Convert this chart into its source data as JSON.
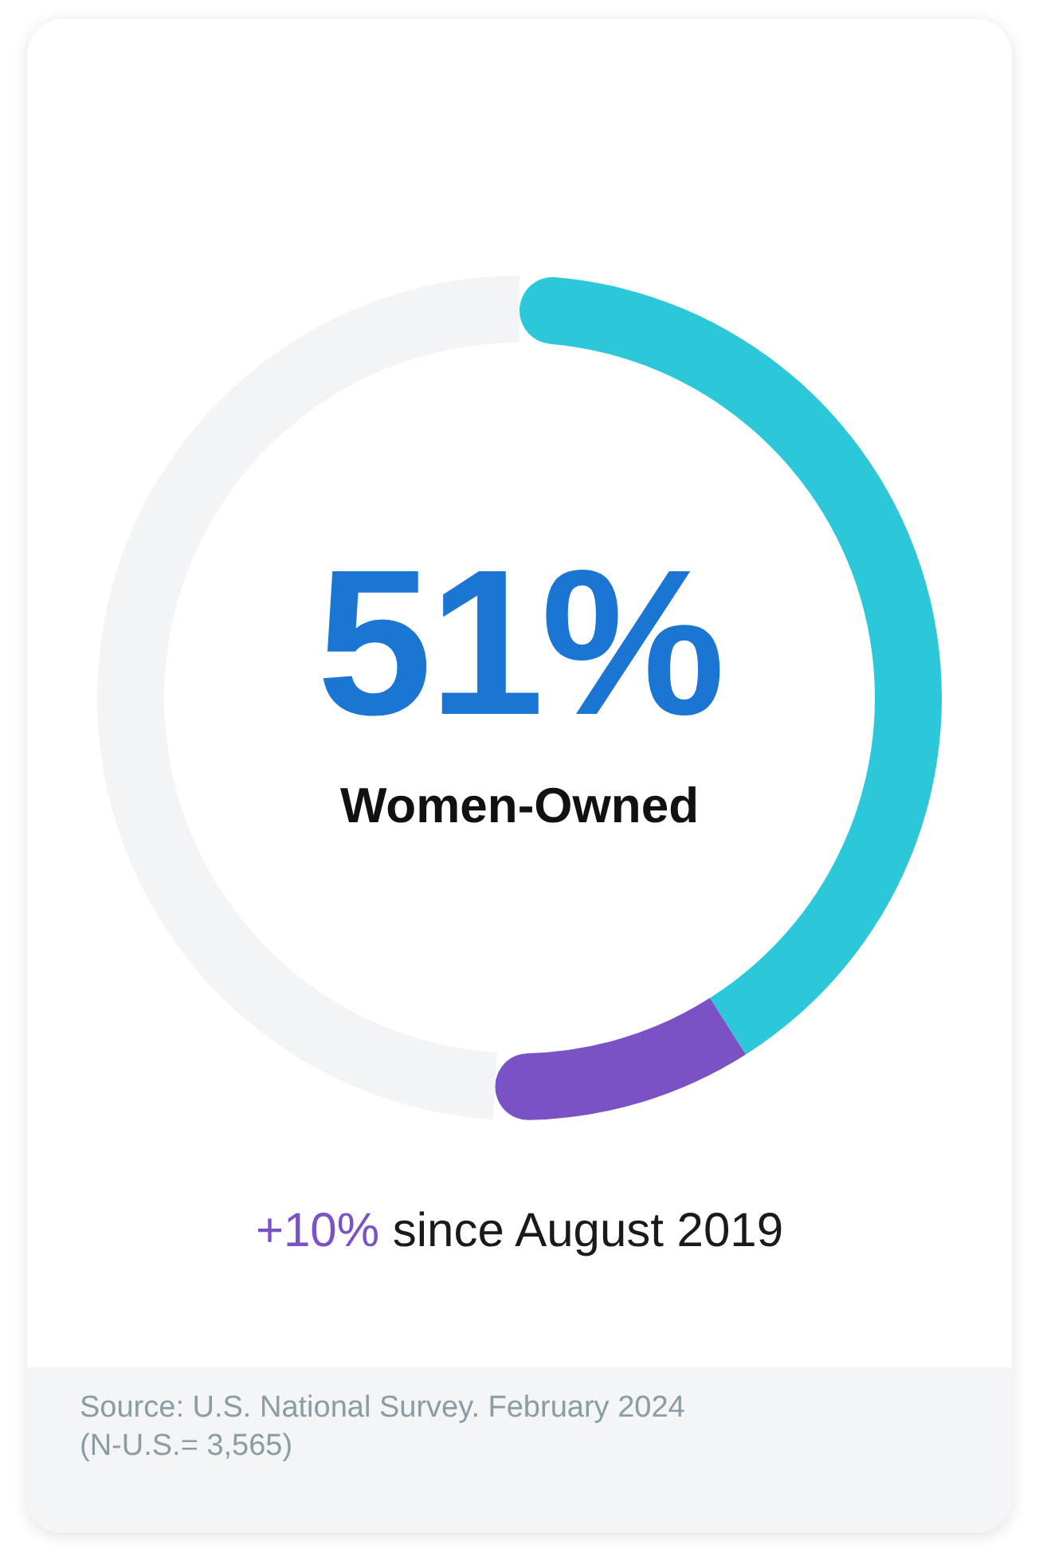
{
  "chart_data": {
    "type": "donut",
    "categories": [
      null,
      null,
      null
    ],
    "values": [
      41,
      10,
      49
    ],
    "colors": [
      "#2cc8da",
      "#7b51c6",
      "#f3f4f6"
    ],
    "annotations": [
      "51%",
      "Women-Owned",
      "+10%",
      "since August 2019",
      "Source: U.S. National Survey. February 2024 (N-U.S.= 3,565)"
    ]
  }
}
